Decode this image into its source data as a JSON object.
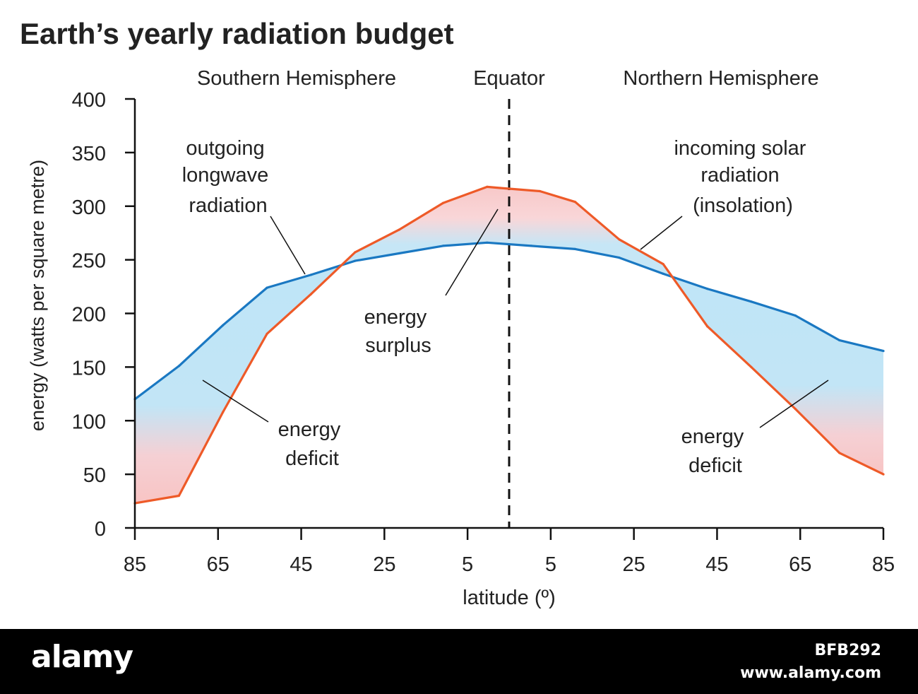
{
  "chart_data": {
    "type": "line",
    "title": "Earth’s yearly radiation budget",
    "xlabel": "latitude (º)",
    "ylabel": "energy (watts per square metre)",
    "ylim": [
      0,
      400
    ],
    "xlim": [
      -85,
      85
    ],
    "yticks": [
      "0",
      "50",
      "100",
      "150",
      "200",
      "250",
      "300",
      "350",
      "400"
    ],
    "xticks": [
      "85",
      "65",
      "45",
      "25",
      "5",
      "5",
      "25",
      "45",
      "65",
      "85"
    ],
    "hemispheres": {
      "south": "Southern Hemisphere",
      "equator": "Equator",
      "north": "Northern Hemisphere"
    },
    "grid": false,
    "series": [
      {
        "name": "outgoing longwave radiation",
        "color": "#1a78c2",
        "x": [
          -85,
          -75,
          -65,
          -55,
          -45,
          -35,
          -25,
          -15,
          -5,
          5,
          15,
          25,
          35,
          45,
          55,
          65,
          75,
          85
        ],
        "values": [
          120,
          151,
          189,
          224,
          236,
          249,
          256,
          263,
          266,
          263,
          260,
          252,
          237,
          223,
          211,
          198,
          175,
          165
        ]
      },
      {
        "name": "incoming solar radiation (insolation)",
        "color": "#ee5a28",
        "x": [
          -85,
          -75,
          -65,
          -55,
          -45,
          -35,
          -25,
          -15,
          -5,
          -2,
          7,
          15,
          25,
          35,
          45,
          55,
          65,
          75,
          85
        ],
        "values": [
          23,
          30,
          108,
          181,
          218,
          257,
          278,
          303,
          318,
          317,
          314,
          304,
          269,
          246,
          188,
          150,
          111,
          70,
          50
        ]
      }
    ],
    "annotations": [
      {
        "lines": [
          "outgoing",
          "longwave",
          "radiation"
        ]
      },
      {
        "lines": [
          "incoming solar",
          "radiation",
          "(insolation)"
        ]
      },
      {
        "lines": [
          "energy",
          "surplus"
        ]
      },
      {
        "lines": [
          "energy",
          "deficit"
        ]
      },
      {
        "lines": [
          "energy",
          "deficit"
        ]
      }
    ]
  },
  "footer": {
    "brand": "alamy",
    "image_id": "BFB292",
    "url": "www.alamy.com"
  }
}
